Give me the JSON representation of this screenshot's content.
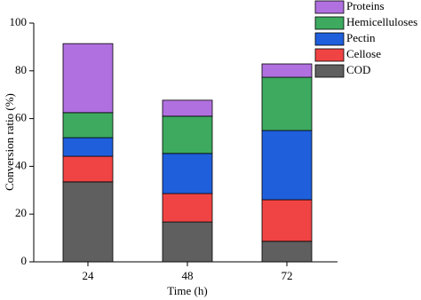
{
  "chart_data": {
    "type": "stacked_bar",
    "xlabel": "Time (h)",
    "ylabel": "Conversion ratio (%)",
    "categories": [
      "24",
      "48",
      "72"
    ],
    "series": [
      {
        "name": "COD",
        "color": "#5f5f5f",
        "values": [
          33.5,
          16.7,
          8.6
        ]
      },
      {
        "name": "Cellose",
        "color": "#f04444",
        "values": [
          10.7,
          11.9,
          17.4
        ]
      },
      {
        "name": "Pectin",
        "color": "#1f5fdc",
        "values": [
          7.8,
          16.8,
          29.0
        ]
      },
      {
        "name": "Hemicelluloses",
        "color": "#3daa5f",
        "values": [
          10.5,
          15.6,
          22.3
        ]
      },
      {
        "name": "Proteins",
        "color": "#b070e0",
        "values": [
          28.9,
          6.7,
          5.6
        ]
      }
    ],
    "ylim": [
      0,
      100
    ],
    "yticks": [
      0,
      20,
      40,
      60,
      80,
      100
    ],
    "legend": "top-right"
  }
}
